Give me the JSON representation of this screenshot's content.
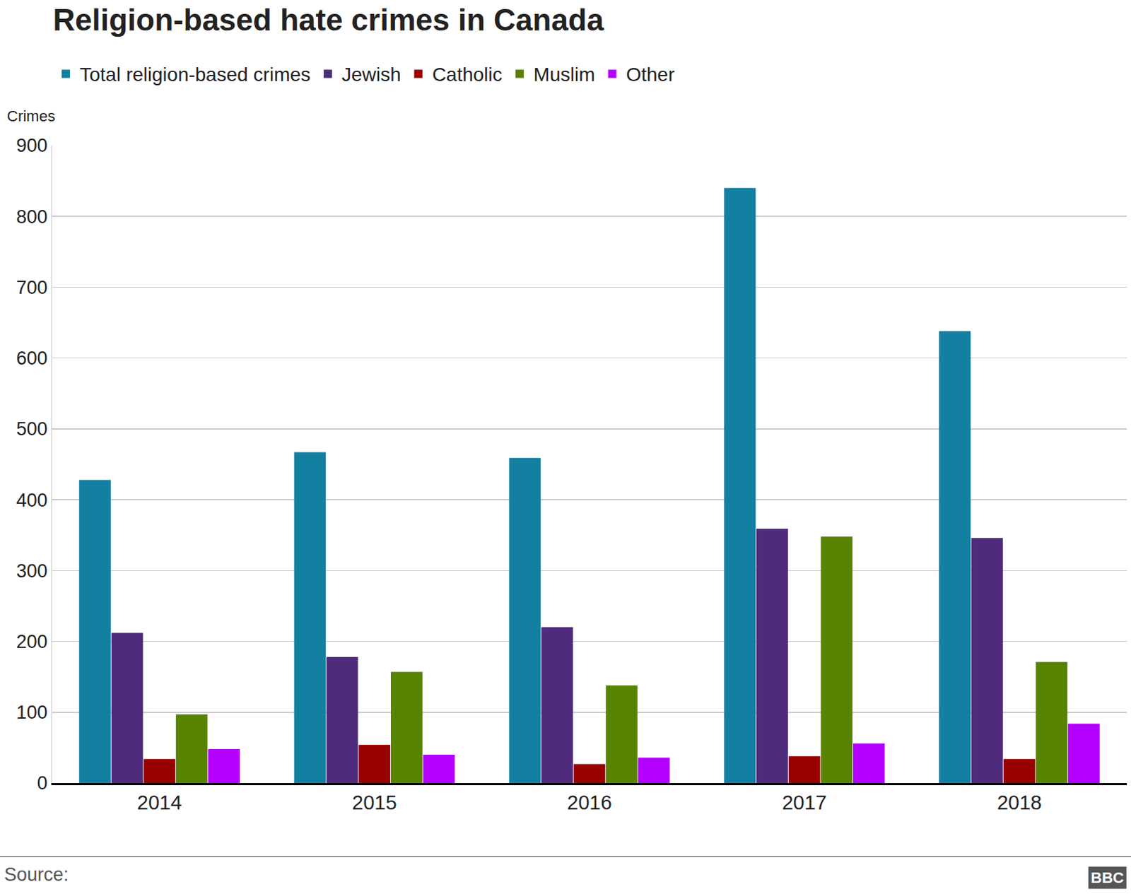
{
  "chart_data": {
    "type": "bar",
    "title": "Religion-based hate crimes in Canada",
    "y_label": "Crimes",
    "source": "Source:",
    "logo": "BBC",
    "categories": [
      "2014",
      "2015",
      "2016",
      "2017",
      "2018"
    ],
    "series": [
      {
        "name": "Total religion-based crimes",
        "color": "#1380a1",
        "values": [
          428,
          467,
          459,
          840,
          638
        ]
      },
      {
        "name": "Jewish",
        "color": "#4f2b7b",
        "values": [
          212,
          178,
          220,
          359,
          346
        ]
      },
      {
        "name": "Catholic",
        "color": "#990000",
        "values": [
          34,
          54,
          27,
          38,
          34
        ]
      },
      {
        "name": "Muslim",
        "color": "#588300",
        "values": [
          97,
          157,
          138,
          348,
          171
        ]
      },
      {
        "name": "Other",
        "color": "#b300ff",
        "values": [
          48,
          40,
          36,
          56,
          84
        ]
      }
    ],
    "ylim": [
      0,
      900
    ],
    "yticks": [
      0,
      100,
      200,
      300,
      400,
      500,
      600,
      700,
      800,
      900
    ],
    "grid": true,
    "legend": "top-left"
  }
}
